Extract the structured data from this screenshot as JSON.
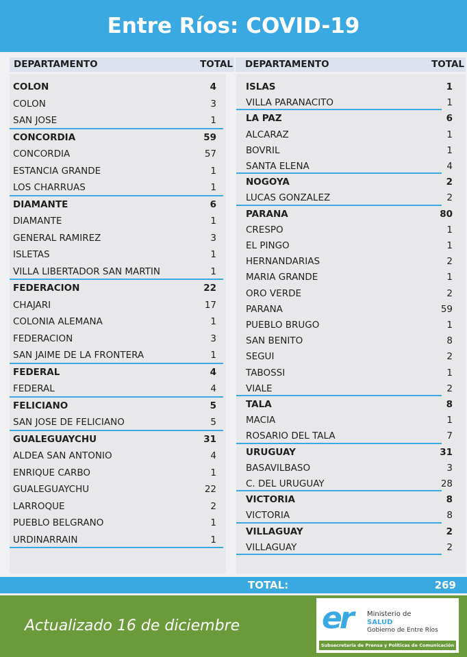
{
  "title": "Entre Ríos: COVID-19",
  "header": {
    "department": "DEPARTAMENTO",
    "total": "TOTAL"
  },
  "left": [
    {
      "name": "COLON",
      "total": 4,
      "rows": [
        {
          "name": "COLON",
          "total": 3
        },
        {
          "name": "SAN JOSE",
          "total": 1
        }
      ]
    },
    {
      "name": "CONCORDIA",
      "total": 59,
      "rows": [
        {
          "name": "CONCORDIA",
          "total": 57
        },
        {
          "name": "ESTANCIA GRANDE",
          "total": 1
        },
        {
          "name": "LOS CHARRUAS",
          "total": 1
        }
      ]
    },
    {
      "name": "DIAMANTE",
      "total": 6,
      "rows": [
        {
          "name": "DIAMANTE",
          "total": 1
        },
        {
          "name": "GENERAL RAMIREZ",
          "total": 3
        },
        {
          "name": "ISLETAS",
          "total": 1
        },
        {
          "name": "VILLA LIBERTADOR SAN MARTIN",
          "total": 1
        }
      ]
    },
    {
      "name": "FEDERACION",
      "total": 22,
      "rows": [
        {
          "name": "CHAJARI",
          "total": 17
        },
        {
          "name": "COLONIA ALEMANA",
          "total": 1
        },
        {
          "name": "FEDERACION",
          "total": 3
        },
        {
          "name": "SAN JAIME DE LA FRONTERA",
          "total": 1
        }
      ]
    },
    {
      "name": "FEDERAL",
      "total": 4,
      "rows": [
        {
          "name": "FEDERAL",
          "total": 4
        }
      ]
    },
    {
      "name": "FELICIANO",
      "total": 5,
      "rows": [
        {
          "name": "SAN JOSE DE FELICIANO",
          "total": 5
        }
      ]
    },
    {
      "name": "GUALEGUAYCHU",
      "total": 31,
      "rows": [
        {
          "name": "ALDEA SAN ANTONIO",
          "total": 4
        },
        {
          "name": "ENRIQUE CARBO",
          "total": 1
        },
        {
          "name": "GUALEGUAYCHU",
          "total": 22
        },
        {
          "name": "LARROQUE",
          "total": 2
        },
        {
          "name": "PUEBLO BELGRANO",
          "total": 1
        },
        {
          "name": "URDINARRAIN",
          "total": 1
        }
      ]
    }
  ],
  "right": [
    {
      "name": "ISLAS",
      "total": 1,
      "rows": [
        {
          "name": "VILLA PARANACITO",
          "total": 1
        }
      ]
    },
    {
      "name": "LA PAZ",
      "total": 6,
      "rows": [
        {
          "name": "ALCARAZ",
          "total": 1
        },
        {
          "name": "BOVRIL",
          "total": 1
        },
        {
          "name": "SANTA ELENA",
          "total": 4
        }
      ]
    },
    {
      "name": "NOGOYA",
      "total": 2,
      "rows": [
        {
          "name": "LUCAS GONZALEZ",
          "total": 2
        }
      ]
    },
    {
      "name": "PARANA",
      "total": 80,
      "rows": [
        {
          "name": "CRESPO",
          "total": 1
        },
        {
          "name": "EL PINGO",
          "total": 1
        },
        {
          "name": "HERNANDARIAS",
          "total": 2
        },
        {
          "name": "MARIA GRANDE",
          "total": 1
        },
        {
          "name": "ORO VERDE",
          "total": 2
        },
        {
          "name": "PARANA",
          "total": 59
        },
        {
          "name": "PUEBLO BRUGO",
          "total": 1
        },
        {
          "name": "SAN BENITO",
          "total": 8
        },
        {
          "name": "SEGUI",
          "total": 2
        },
        {
          "name": "TABOSSI",
          "total": 1
        },
        {
          "name": "VIALE",
          "total": 2
        }
      ]
    },
    {
      "name": "TALA",
      "total": 8,
      "rows": [
        {
          "name": "MACIA",
          "total": 1
        },
        {
          "name": "ROSARIO DEL TALA",
          "total": 7
        }
      ]
    },
    {
      "name": "URUGUAY",
      "total": 31,
      "rows": [
        {
          "name": "BASAVILBASO",
          "total": 3
        },
        {
          "name": "C. DEL URUGUAY",
          "total": 28
        }
      ]
    },
    {
      "name": "VICTORIA",
      "total": 8,
      "rows": [
        {
          "name": "VICTORIA",
          "total": 8
        }
      ]
    },
    {
      "name": "VILLAGUAY",
      "total": 2,
      "rows": [
        {
          "name": "VILLAGUAY",
          "total": 2
        }
      ]
    }
  ],
  "grand_total": {
    "label": "TOTAL:",
    "value": 269
  },
  "footer": {
    "updated": "Actualizado 16 de diciembre",
    "logo_mark": "er",
    "ministry": "Ministerio de",
    "salud": "SALUD",
    "government": "Gobierno de Entre Ríos",
    "subsecretaria": "Subsecretaría de Prensa y Políticas de Comunicación"
  }
}
